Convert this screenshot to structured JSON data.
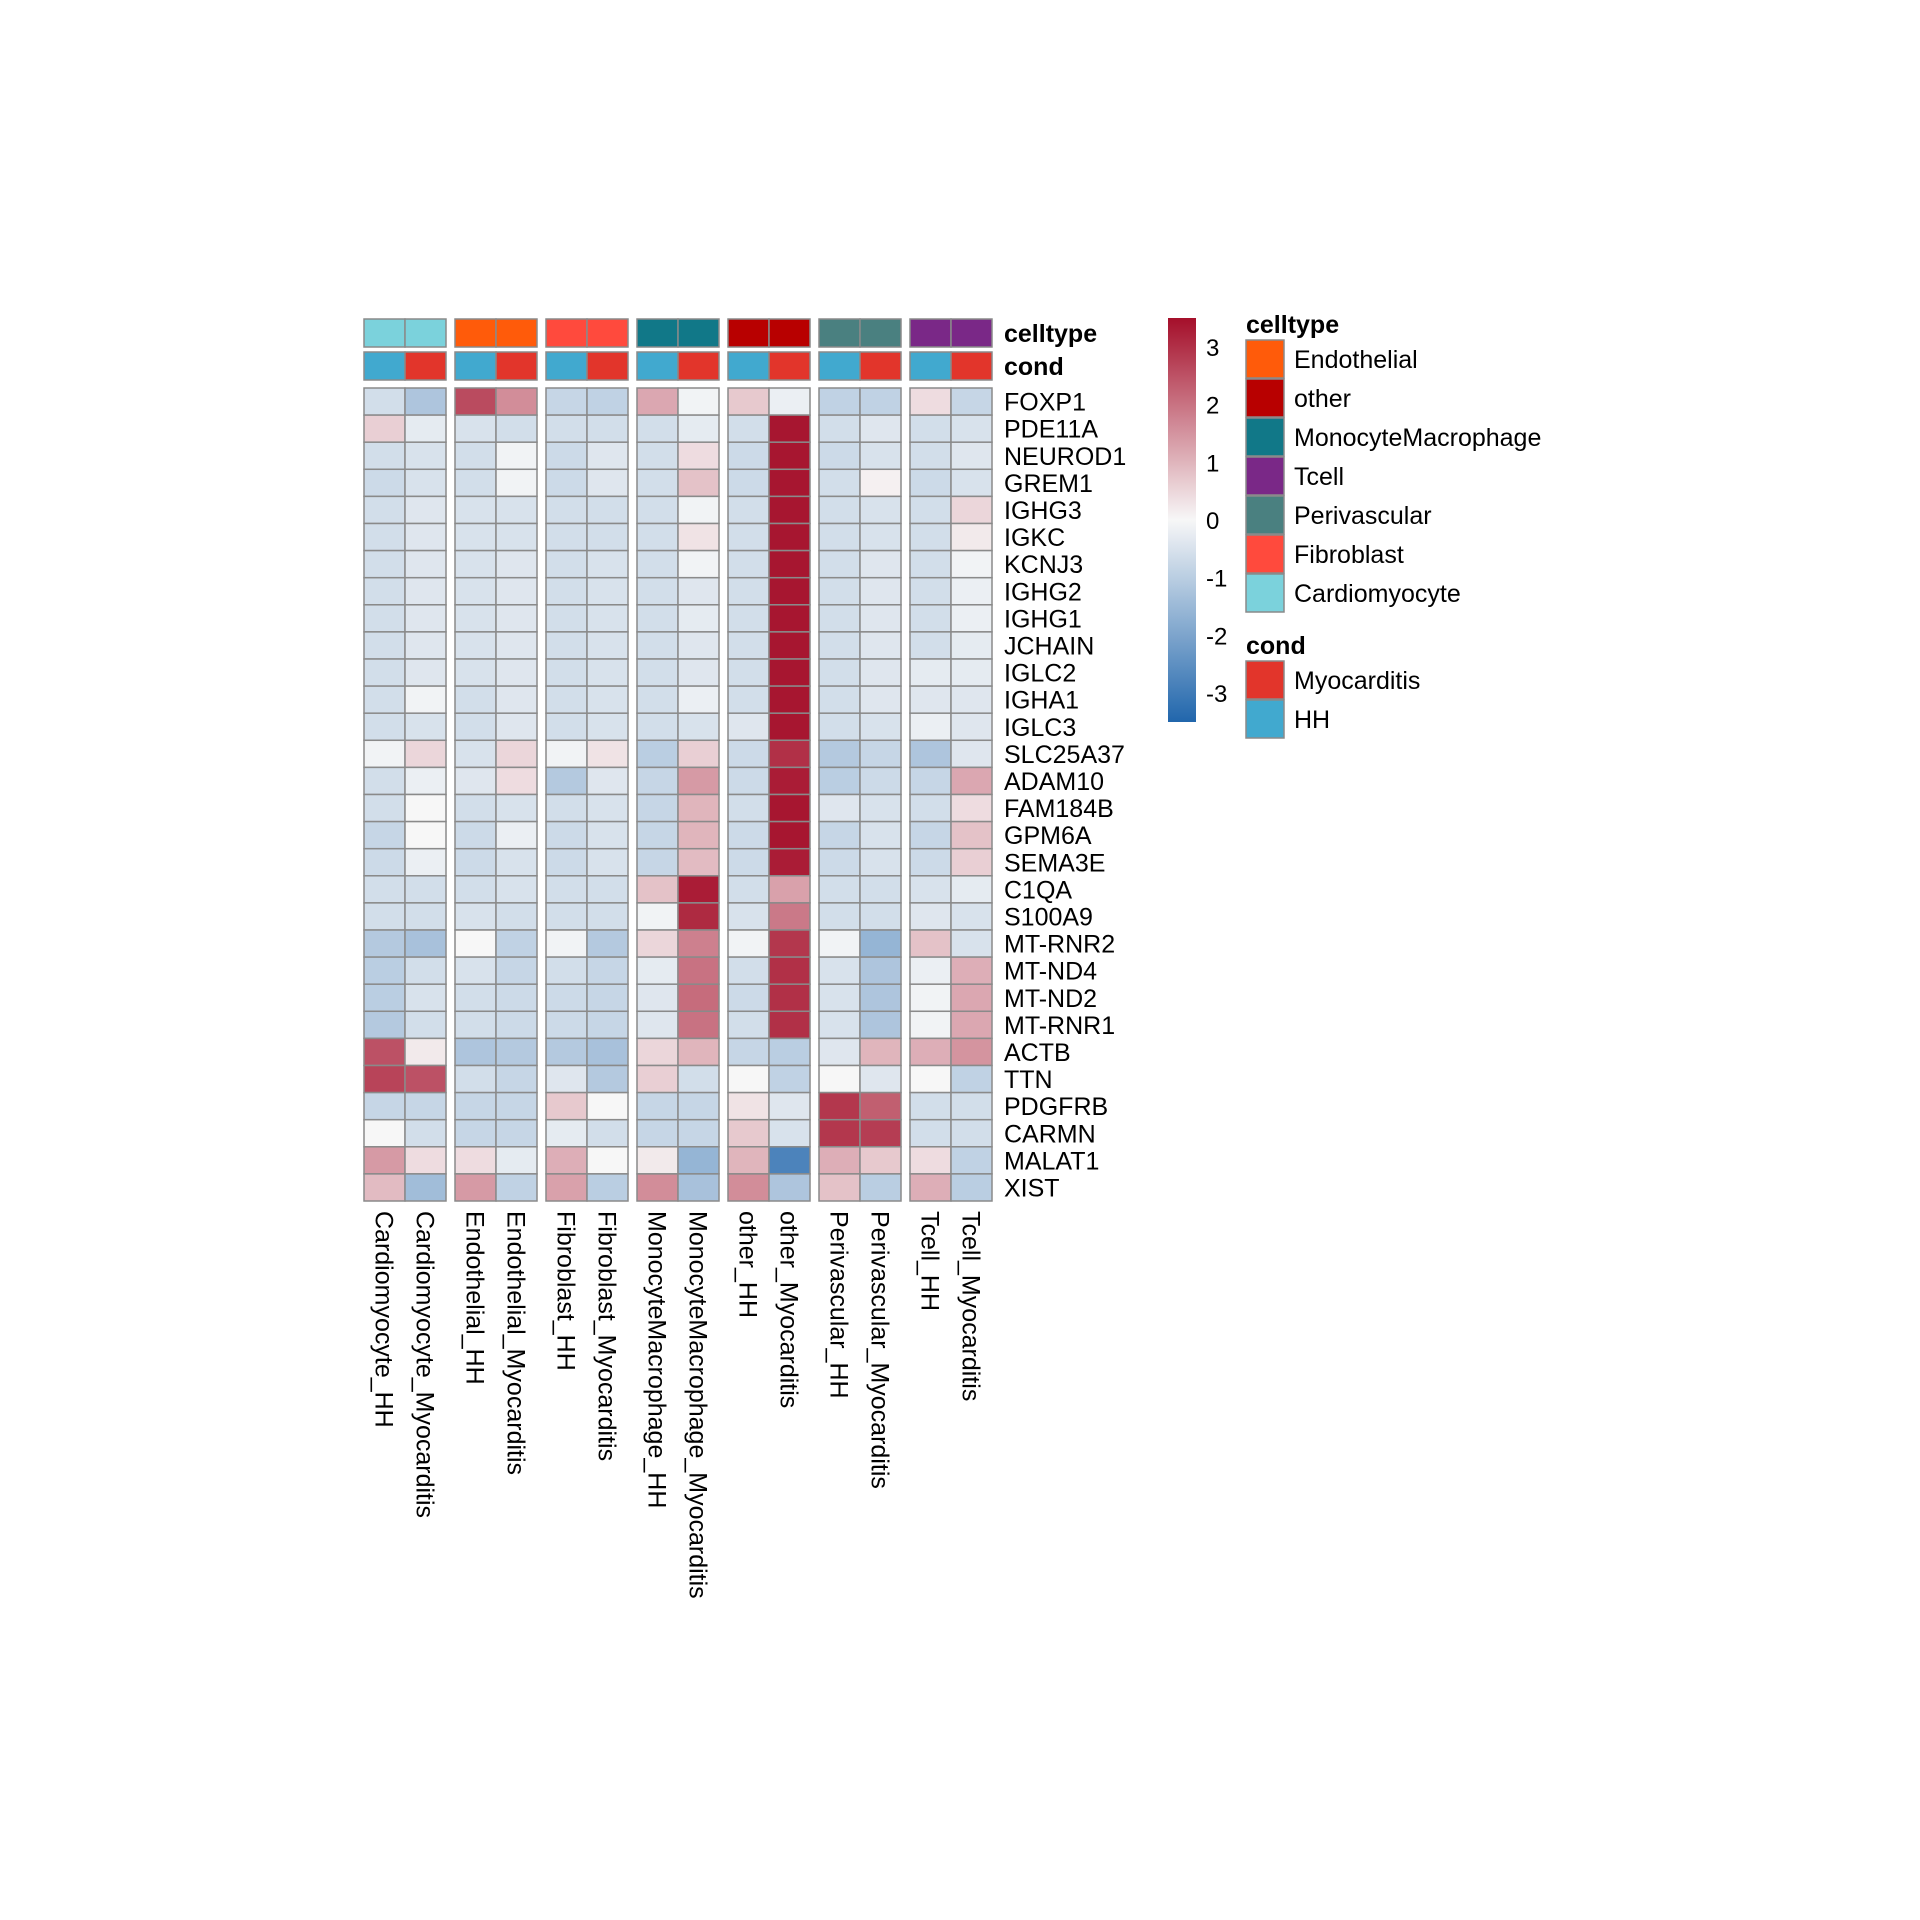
{
  "chart_data": {
    "type": "heatmap",
    "columns": [
      "Cardiomyocyte_HH",
      "Cardiomyocyte_Myocarditis",
      "Endothelial_HH",
      "Endothelial_Myocarditis",
      "Fibroblast_HH",
      "Fibroblast_Myocarditis",
      "MonocyteMacrophage_HH",
      "MonocyteMacrophage_Myocarditis",
      "other_HH",
      "other_Myocarditis",
      "Perivascular_HH",
      "Perivascular_Myocarditis",
      "Tcell_HH",
      "Tcell_Myocarditis"
    ],
    "rows": [
      "FOXP1",
      "PDE11A",
      "NEUROD1",
      "GREM1",
      "IGHG3",
      "IGKC",
      "KCNJ3",
      "IGHG2",
      "IGHG1",
      "JCHAIN",
      "IGLC2",
      "IGHA1",
      "IGLC3",
      "SLC25A37",
      "ADAM10",
      "FAM184B",
      "GPM6A",
      "SEMA3E",
      "C1QA",
      "S100A9",
      "MT-RNR2",
      "MT-ND4",
      "MT-ND2",
      "MT-RNR1",
      "ACTB",
      "TTN",
      "PDGFRB",
      "CARMN",
      "MALAT1",
      "XIST"
    ],
    "values": [
      [
        -0.6,
        -1.2,
        2.6,
        1.6,
        -0.8,
        -0.9,
        1.2,
        -0.1,
        0.7,
        -0.2,
        -0.9,
        -0.9,
        0.4,
        -0.8
      ],
      [
        0.6,
        -0.3,
        -0.5,
        -0.6,
        -0.6,
        -0.6,
        -0.6,
        -0.3,
        -0.6,
        3.4,
        -0.6,
        -0.4,
        -0.6,
        -0.5
      ],
      [
        -0.6,
        -0.5,
        -0.6,
        -0.1,
        -0.7,
        -0.4,
        -0.6,
        0.4,
        -0.7,
        3.4,
        -0.7,
        -0.5,
        -0.6,
        -0.4
      ],
      [
        -0.7,
        -0.5,
        -0.6,
        -0.1,
        -0.7,
        -0.4,
        -0.6,
        0.8,
        -0.7,
        3.4,
        -0.6,
        0.1,
        -0.7,
        -0.5
      ],
      [
        -0.6,
        -0.4,
        -0.5,
        -0.5,
        -0.6,
        -0.6,
        -0.6,
        -0.1,
        -0.6,
        3.4,
        -0.6,
        -0.5,
        -0.6,
        0.5
      ],
      [
        -0.6,
        -0.4,
        -0.5,
        -0.5,
        -0.6,
        -0.6,
        -0.6,
        0.3,
        -0.6,
        3.4,
        -0.6,
        -0.5,
        -0.6,
        0.2
      ],
      [
        -0.6,
        -0.4,
        -0.5,
        -0.4,
        -0.6,
        -0.5,
        -0.6,
        -0.1,
        -0.6,
        3.4,
        -0.6,
        -0.4,
        -0.6,
        -0.1
      ],
      [
        -0.6,
        -0.4,
        -0.5,
        -0.4,
        -0.6,
        -0.5,
        -0.6,
        -0.4,
        -0.6,
        3.4,
        -0.6,
        -0.4,
        -0.6,
        -0.2
      ],
      [
        -0.6,
        -0.4,
        -0.5,
        -0.4,
        -0.6,
        -0.5,
        -0.6,
        -0.3,
        -0.6,
        3.4,
        -0.6,
        -0.4,
        -0.6,
        -0.2
      ],
      [
        -0.6,
        -0.4,
        -0.5,
        -0.4,
        -0.6,
        -0.5,
        -0.6,
        -0.4,
        -0.6,
        3.4,
        -0.6,
        -0.4,
        -0.6,
        -0.3
      ],
      [
        -0.6,
        -0.4,
        -0.5,
        -0.4,
        -0.6,
        -0.5,
        -0.6,
        -0.4,
        -0.6,
        3.4,
        -0.6,
        -0.4,
        -0.3,
        -0.3
      ],
      [
        -0.6,
        -0.1,
        -0.6,
        -0.4,
        -0.6,
        -0.5,
        -0.6,
        -0.2,
        -0.6,
        3.4,
        -0.6,
        -0.4,
        -0.4,
        -0.4
      ],
      [
        -0.6,
        -0.5,
        -0.6,
        -0.4,
        -0.6,
        -0.5,
        -0.6,
        -0.5,
        -0.4,
        3.4,
        -0.6,
        -0.5,
        -0.2,
        -0.4
      ],
      [
        -0.1,
        0.5,
        -0.5,
        0.5,
        -0.1,
        0.3,
        -1.0,
        0.6,
        -0.7,
        3.0,
        -1.1,
        -0.8,
        -1.2,
        -0.4
      ],
      [
        -0.6,
        -0.2,
        -0.4,
        0.4,
        -1.1,
        -0.4,
        -0.8,
        1.4,
        -0.7,
        3.3,
        -1.0,
        -0.7,
        -0.8,
        1.2
      ],
      [
        -0.6,
        0.0,
        -0.6,
        -0.5,
        -0.6,
        -0.5,
        -0.8,
        1.0,
        -0.6,
        3.4,
        -0.4,
        -0.5,
        -0.6,
        0.4
      ],
      [
        -0.8,
        0.0,
        -0.7,
        -0.2,
        -0.7,
        -0.5,
        -0.8,
        1.0,
        -0.7,
        3.4,
        -0.8,
        -0.5,
        -0.8,
        0.8
      ],
      [
        -0.7,
        -0.2,
        -0.7,
        -0.5,
        -0.7,
        -0.5,
        -0.8,
        0.9,
        -0.7,
        3.3,
        -0.7,
        -0.5,
        -0.7,
        0.6
      ],
      [
        -0.6,
        -0.6,
        -0.6,
        -0.5,
        -0.6,
        -0.6,
        0.8,
        3.3,
        -0.6,
        1.3,
        -0.6,
        -0.6,
        -0.5,
        -0.3
      ],
      [
        -0.6,
        -0.6,
        -0.5,
        -0.6,
        -0.6,
        -0.6,
        -0.1,
        3.1,
        -0.5,
        1.9,
        -0.6,
        -0.6,
        -0.4,
        -0.5
      ],
      [
        -1.1,
        -1.3,
        0.0,
        -0.9,
        -0.1,
        -1.1,
        0.5,
        1.8,
        -0.1,
        2.9,
        -0.1,
        -1.6,
        0.8,
        -0.5
      ],
      [
        -1.0,
        -0.6,
        -0.5,
        -0.8,
        -0.6,
        -0.8,
        -0.3,
        2.0,
        -0.6,
        3.0,
        -0.5,
        -1.2,
        -0.2,
        1.1
      ],
      [
        -1.0,
        -0.5,
        -0.6,
        -0.7,
        -0.7,
        -0.8,
        -0.4,
        2.1,
        -0.7,
        3.0,
        -0.5,
        -1.2,
        -0.1,
        1.2
      ],
      [
        -1.1,
        -0.6,
        -0.6,
        -0.7,
        -0.7,
        -0.8,
        -0.4,
        2.0,
        -0.6,
        3.0,
        -0.5,
        -1.2,
        -0.1,
        1.2
      ],
      [
        2.5,
        0.2,
        -1.2,
        -1.1,
        -1.1,
        -1.3,
        0.5,
        1.0,
        -0.8,
        -1.0,
        -0.4,
        1.0,
        1.1,
        1.5
      ],
      [
        2.7,
        2.5,
        -0.6,
        -0.8,
        -0.4,
        -1.1,
        0.6,
        -0.6,
        0.0,
        -0.9,
        0.0,
        -0.4,
        0.0,
        -0.9
      ],
      [
        -0.8,
        -0.8,
        -0.8,
        -0.8,
        0.7,
        0.0,
        -0.8,
        -0.8,
        0.3,
        -0.4,
        2.9,
        2.3,
        -0.6,
        -0.6
      ],
      [
        0.0,
        -0.6,
        -0.8,
        -0.8,
        -0.3,
        -0.6,
        -0.8,
        -0.8,
        0.7,
        -0.5,
        2.9,
        2.8,
        -0.6,
        -0.6
      ],
      [
        1.4,
        0.4,
        0.4,
        -0.3,
        1.1,
        0.0,
        0.2,
        -1.6,
        1.0,
        -2.8,
        1.1,
        0.7,
        0.4,
        -0.9
      ],
      [
        0.9,
        -1.4,
        1.4,
        -0.9,
        1.3,
        -1.0,
        1.6,
        -1.3,
        1.6,
        -1.2,
        0.8,
        -1.0,
        1.1,
        -1.0
      ]
    ],
    "scale": {
      "min": -3.5,
      "max": 3.5,
      "ticks": [
        "3",
        "2",
        "1",
        "0",
        "-1",
        "-2",
        "-3"
      ],
      "tick_values": [
        3,
        2,
        1,
        0,
        -1,
        -2,
        -3
      ],
      "low_color": "#2166ac",
      "mid_color": "#f7f7f7",
      "high_color": "#a50f2a"
    },
    "annotations": {
      "celltype": [
        "Cardiomyocyte",
        "Cardiomyocyte",
        "Endothelial",
        "Endothelial",
        "Fibroblast",
        "Fibroblast",
        "MonocyteMacrophage",
        "MonocyteMacrophage",
        "other",
        "other",
        "Perivascular",
        "Perivascular",
        "Tcell",
        "Tcell"
      ],
      "cond": [
        "HH",
        "Myocarditis",
        "HH",
        "Myocarditis",
        "HH",
        "Myocarditis",
        "HH",
        "Myocarditis",
        "HH",
        "Myocarditis",
        "HH",
        "Myocarditis",
        "HH",
        "Myocarditis"
      ]
    },
    "annotation_labels": [
      "celltype",
      "cond"
    ],
    "legend": {
      "celltype": {
        "title": "celltype",
        "items": [
          {
            "label": "Endothelial",
            "color": "#ff5b0a"
          },
          {
            "label": "other",
            "color": "#b80000"
          },
          {
            "label": "MonocyteMacrophage",
            "color": "#117888"
          },
          {
            "label": "Tcell",
            "color": "#7a2887"
          },
          {
            "label": "Perivascular",
            "color": "#4a8080"
          },
          {
            "label": "Fibroblast",
            "color": "#ff4a3d"
          },
          {
            "label": "Cardiomyocyte",
            "color": "#7bd2dc"
          }
        ]
      },
      "cond": {
        "title": "cond",
        "items": [
          {
            "label": "Myocarditis",
            "color": "#e2352b"
          },
          {
            "label": "HH",
            "color": "#41a9cf"
          }
        ]
      }
    },
    "column_gap_groups": 2,
    "grid": true,
    "legend_position": "right"
  }
}
